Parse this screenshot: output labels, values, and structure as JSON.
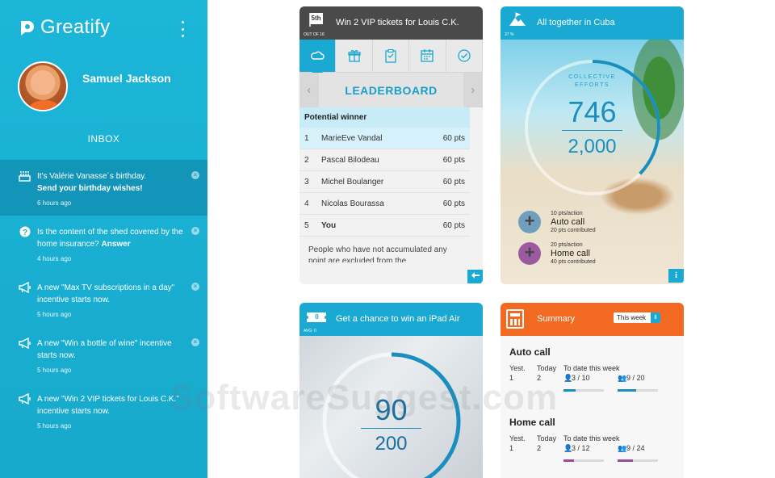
{
  "app": {
    "name": "Greatify"
  },
  "user": {
    "name": "Samuel Jackson"
  },
  "inbox": {
    "title": "INBOX",
    "items": [
      {
        "icon": "cake-icon",
        "text": "It's Valérie Vanasse´s birthday.",
        "action": "Send your birthday wishes!",
        "time": "6 hours ago"
      },
      {
        "icon": "question-icon",
        "text": "Is the content of the shed covered by the home insurance?",
        "action": "Answer",
        "time": "4 hours ago"
      },
      {
        "icon": "megaphone-icon",
        "text": "A new \"Max TV subscriptions in a day\" incentive starts now.",
        "action": "",
        "time": "5 hours ago"
      },
      {
        "icon": "megaphone-icon",
        "text": "A new \"Win a bottle of wine\" incentive starts now.",
        "action": "",
        "time": "5 hours ago"
      },
      {
        "icon": "megaphone-icon",
        "text": "A new \"Win 2 VIP tickets for Louis C.K.\" incentive starts now.",
        "action": "",
        "time": "5 hours ago"
      }
    ]
  },
  "leaderboard_card": {
    "title": "Win 2 VIP tickets for Louis C.K.",
    "badge": "5th",
    "badge_sub": "OUT OF 16",
    "tabs": [
      "cloud-icon",
      "gift-icon",
      "clipboard-icon",
      "calendar-icon",
      "check-icon"
    ],
    "heading": "LEADERBOARD",
    "group_label": "Potential winner",
    "rows": [
      {
        "rank": "1",
        "name": "MarieEve Vandal",
        "points": "60 pts"
      },
      {
        "rank": "2",
        "name": "Pascal Bilodeau",
        "points": "60 pts"
      },
      {
        "rank": "3",
        "name": "Michel Boulanger",
        "points": "60 pts"
      },
      {
        "rank": "4",
        "name": "Nicolas Bourassa",
        "points": "60 pts"
      },
      {
        "rank": "5",
        "name": "You",
        "points": "60 pts"
      }
    ],
    "note": "People who have not accumulated any point are excluded from the"
  },
  "cuba_card": {
    "title": "All together in Cuba",
    "badge_sub": "37 %",
    "label": "COLLECTIVE EFFORTS",
    "current": "746",
    "goal": "2,000",
    "progress": 0.373,
    "actions": [
      {
        "rate": "10 pts/action",
        "name": "Auto call",
        "contrib": "20 pts contributed",
        "color": "#5b8fb0"
      },
      {
        "rate": "20 pts/action",
        "name": "Home call",
        "contrib": "40 pts contributed",
        "color": "#9b4d9a"
      }
    ]
  },
  "ipad_card": {
    "title": "Get a chance to win an iPad Air",
    "badge": "0",
    "badge_sub": "AVG: 0",
    "current": "90",
    "goal": "200",
    "progress": 0.45
  },
  "summary_card": {
    "title": "Summary",
    "period": "This week",
    "blocks": [
      {
        "title": "Auto call",
        "yest_label": "Yest.",
        "today_label": "Today",
        "todate_label": "To date this week",
        "yest": "1",
        "today": "2",
        "personal": "3 / 10",
        "team": "9 / 20",
        "personal_fill": 0.3,
        "team_fill": 0.45,
        "color": "#1a8fbf"
      },
      {
        "title": "Home call",
        "yest_label": "Yest.",
        "today_label": "Today",
        "todate_label": "To date this week",
        "yest": "1",
        "today": "2",
        "personal": "3 / 12",
        "team": "9 / 24",
        "personal_fill": 0.25,
        "team_fill": 0.375,
        "color": "#9b4d9a"
      }
    ]
  },
  "watermark": "SoftwareSuggest.com"
}
